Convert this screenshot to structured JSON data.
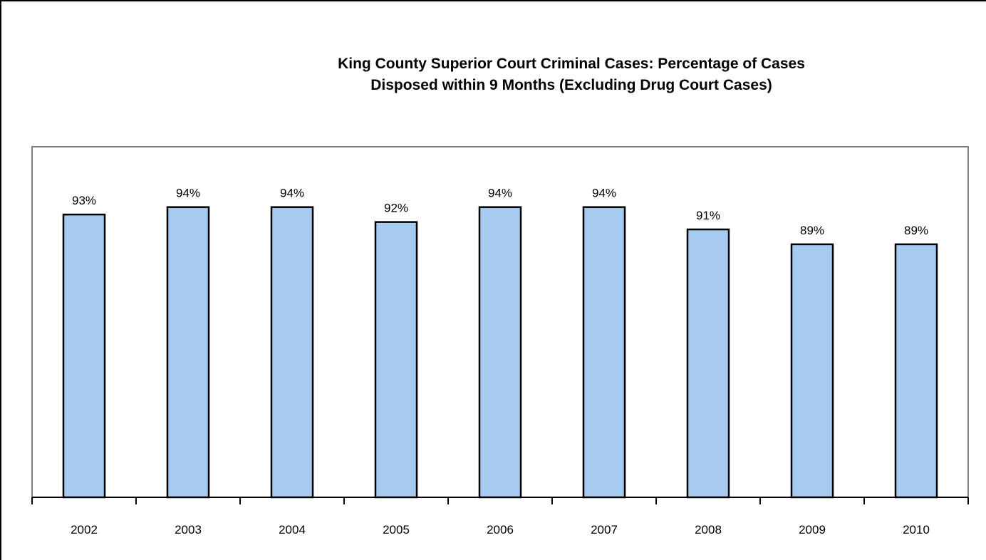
{
  "chart_data": {
    "type": "bar",
    "title_lines": [
      "King County Superior Court Criminal  Cases: Percentage of Cases",
      "Disposed within 9 Months (Excluding Drug Court Cases)"
    ],
    "categories": [
      "2002",
      "2003",
      "2004",
      "2005",
      "2006",
      "2007",
      "2008",
      "2009",
      "2010"
    ],
    "values": [
      93,
      94,
      94,
      92,
      94,
      94,
      91,
      89,
      89
    ],
    "data_labels": [
      "93%",
      "94%",
      "94%",
      "92%",
      "94%",
      "94%",
      "91%",
      "89%",
      "89%"
    ],
    "value_unit": "%",
    "xlabel": "",
    "ylabel": "",
    "ylim": [
      55,
      100
    ],
    "grid": false,
    "legend": "none",
    "colors": {
      "bar_fill": "#a7caf0",
      "bar_stroke": "#000000",
      "plot_border": "#808080",
      "frame_border": "#000000"
    }
  }
}
